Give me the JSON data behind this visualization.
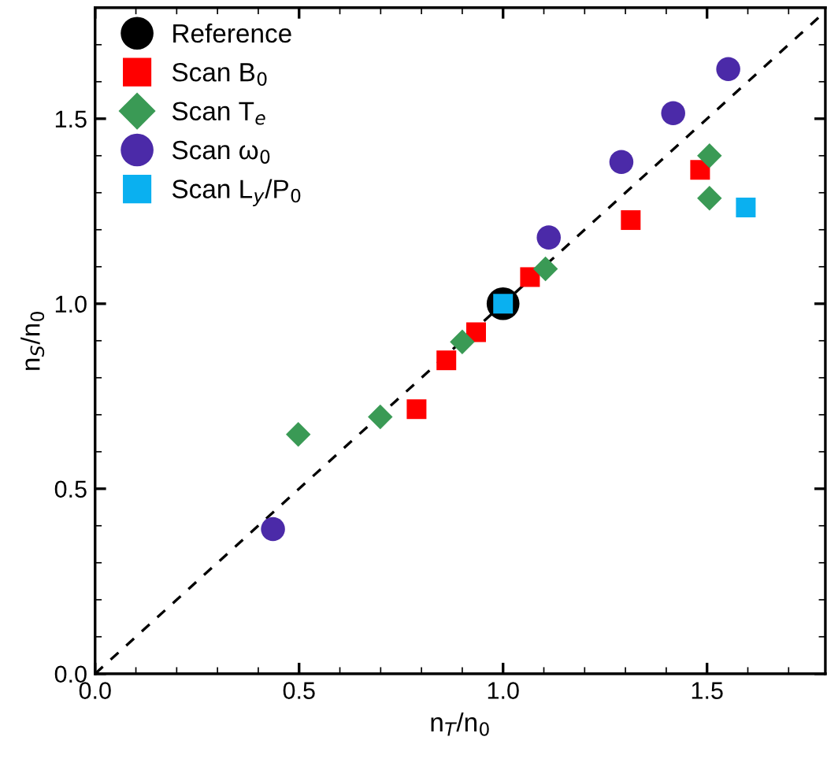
{
  "chart_data": {
    "type": "scatter",
    "xlabel": "n$_{T}$/n$_{0}$",
    "ylabel": "n$_{S}$/n$_{0}$",
    "xlim": [
      0,
      1.79
    ],
    "ylim": [
      0,
      1.8
    ],
    "xticks": [
      {
        "value": 0,
        "label": "0.0"
      },
      {
        "value": 0.5,
        "label": "0.5"
      },
      {
        "value": 1,
        "label": "1.0"
      },
      {
        "value": 1.5,
        "label": "1.5"
      }
    ],
    "yticks": [
      {
        "value": 0,
        "label": "0.0"
      },
      {
        "value": 0.5,
        "label": "0.5"
      },
      {
        "value": 1,
        "label": "1.0"
      },
      {
        "value": 1.5,
        "label": "1.5"
      }
    ],
    "grid": false,
    "legend": "top left",
    "series": [
      {
        "type": "line",
        "color": "#000000",
        "line_style": "dashed",
        "marker": "none",
        "x": [
          0,
          1.79
        ],
        "values": [
          0,
          1.79
        ]
      },
      {
        "name": "Reference",
        "color": "#000000",
        "marker": "circle",
        "x": [
          1.0
        ],
        "values": [
          1.0
        ]
      },
      {
        "name": "Scan B$_{0}$",
        "color": "#ff0000",
        "marker": "square",
        "x": [
          1.066,
          0.934,
          0.861,
          0.788,
          1.313,
          1.483
        ],
        "values": [
          1.072,
          0.923,
          0.847,
          0.715,
          1.226,
          1.362
        ]
      },
      {
        "name": "Scan T$_{e}$",
        "color": "#3a9a55",
        "marker": "diamond",
        "x": [
          1.104,
          0.9,
          0.699,
          0.498,
          1.506,
          1.506
        ],
        "values": [
          1.094,
          0.897,
          0.694,
          0.647,
          1.4,
          1.285
        ]
      },
      {
        "name": "Scan ω$_{0}$",
        "color": "#4b2aa8",
        "marker": "circle",
        "x": [
          1.112,
          1.29,
          1.417,
          1.552,
          0.436
        ],
        "values": [
          1.179,
          1.383,
          1.515,
          1.634,
          0.391
        ]
      },
      {
        "name": "Scan L$_{y}$/P$_{0}$",
        "color": "#0ab0f0",
        "marker": "square",
        "x": [
          1.0,
          1.595
        ],
        "values": [
          1.0,
          1.26
        ]
      }
    ]
  }
}
